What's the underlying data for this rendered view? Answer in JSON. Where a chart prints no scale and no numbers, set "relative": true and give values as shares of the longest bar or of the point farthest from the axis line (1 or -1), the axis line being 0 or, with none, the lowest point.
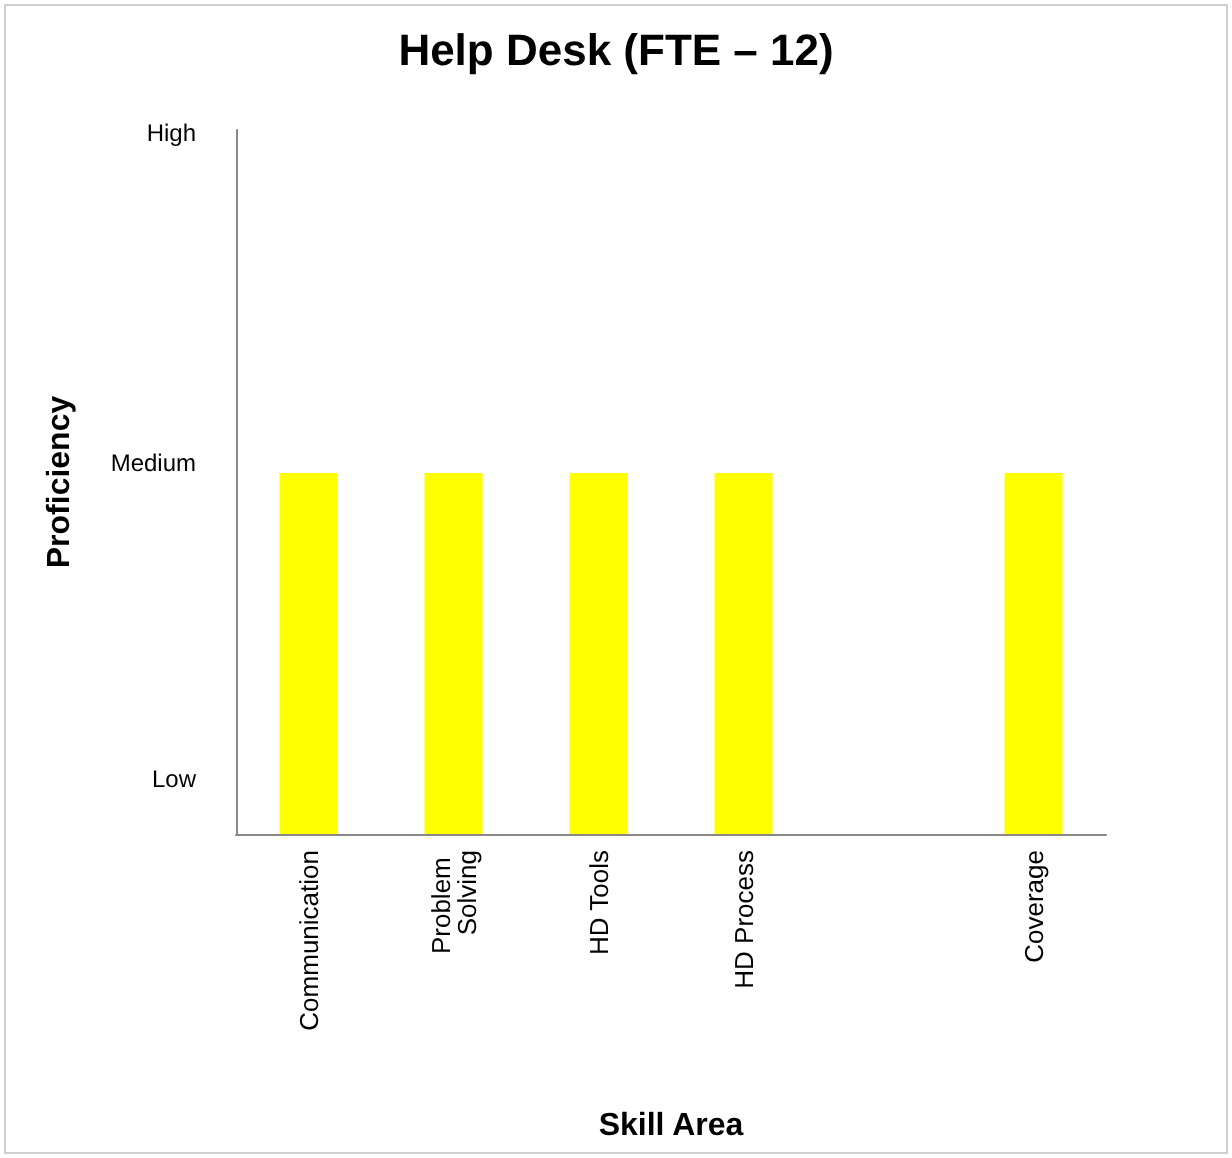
{
  "chart_data": {
    "type": "bar",
    "title": "Help Desk (FTE – 12)",
    "xlabel": "Skill Area",
    "ylabel": "Proficiency",
    "categories": [
      "Communication",
      "Problem Solving",
      "HD Tools",
      "HD Process",
      null,
      "Coverage"
    ],
    "values": [
      1,
      1,
      1,
      1,
      null,
      1
    ],
    "color": "#ffff00",
    "relative": true,
    "annotations": [
      "Low",
      "Medium",
      "High"
    ],
    "grid": false
  }
}
